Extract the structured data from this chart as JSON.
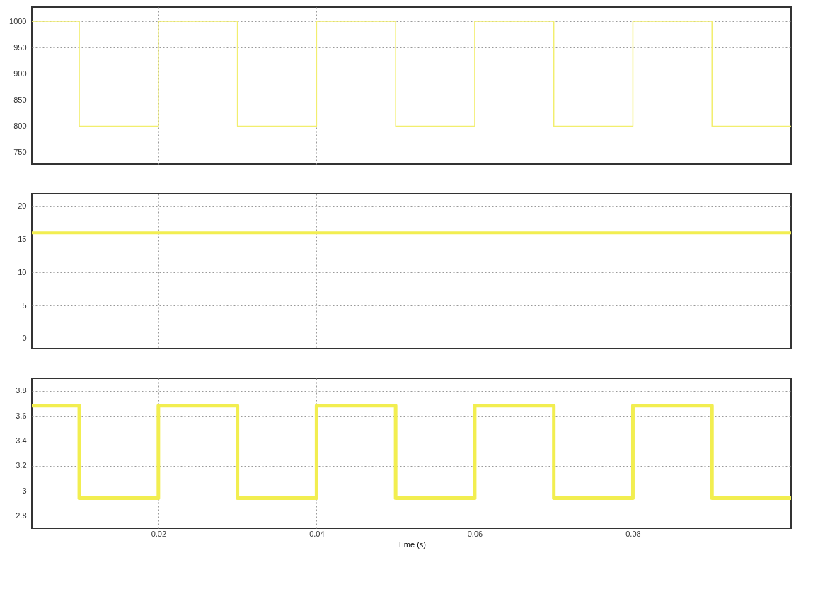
{
  "chart_data": [
    {
      "type": "step",
      "x": [
        0.004,
        0.01,
        0.02,
        0.03,
        0.04,
        0.05,
        0.06,
        0.07,
        0.08,
        0.09,
        0.1
      ],
      "series": [
        {
          "color": "#f2ee6e",
          "values": [
            1000,
            800,
            1000,
            800,
            1000,
            800,
            1000,
            800,
            1000,
            800,
            800
          ]
        }
      ],
      "xlim": [
        0.004,
        0.1
      ],
      "xticks": [
        0.02,
        0.04,
        0.06,
        0.08
      ],
      "ylim": [
        728,
        1027
      ],
      "yticks": [
        750,
        800,
        850,
        900,
        950,
        1000
      ],
      "grid": true,
      "tick_labels": "y"
    },
    {
      "type": "line",
      "x": [
        0.004,
        0.1
      ],
      "series": [
        {
          "color": "#f2ee50",
          "values": [
            16,
            16
          ]
        }
      ],
      "xlim": [
        0.004,
        0.1
      ],
      "xticks": [
        0.02,
        0.04,
        0.06,
        0.08
      ],
      "ylim": [
        -1.5,
        21.9
      ],
      "yticks": [
        0,
        5,
        10,
        15,
        20
      ],
      "grid": true,
      "tick_labels": "y"
    },
    {
      "type": "step",
      "x": [
        0.004,
        0.01,
        0.02,
        0.03,
        0.04,
        0.05,
        0.06,
        0.07,
        0.08,
        0.09,
        0.1
      ],
      "series": [
        {
          "color": "#f2ee50",
          "values": [
            3.68,
            2.94,
            3.68,
            2.94,
            3.68,
            2.94,
            3.68,
            2.94,
            3.68,
            2.94,
            2.94
          ]
        }
      ],
      "xlim": [
        0.004,
        0.1
      ],
      "xticks": [
        0.02,
        0.04,
        0.06,
        0.08
      ],
      "ylim": [
        2.7,
        3.9
      ],
      "yticks": [
        2.8,
        3,
        3.2,
        3.4,
        3.6,
        3.8
      ],
      "grid": true,
      "xlabel": "Time (s)"
    }
  ]
}
